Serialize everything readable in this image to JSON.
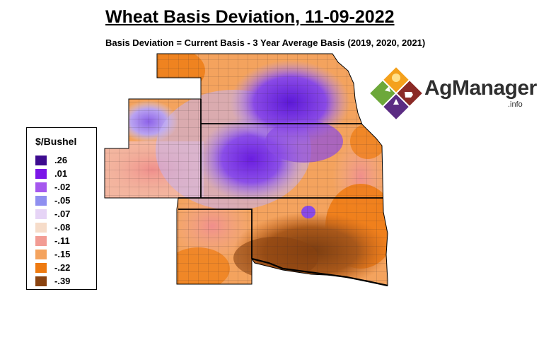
{
  "map": {
    "title": "Wheat Basis Deviation, 11-09-2022",
    "subtitle": "Basis Deviation = Current Basis - 3 Year Average Basis (2019, 2020, 2021)"
  },
  "legend": {
    "title": "$/Bushel",
    "items": [
      {
        "label": ".26",
        "color": "#3d0b8f"
      },
      {
        "label": ".01",
        "color": "#7b16e8"
      },
      {
        "label": "-.02",
        "color": "#a557ee"
      },
      {
        "label": "-.05",
        "color": "#8f8ff0"
      },
      {
        "label": "-.07",
        "color": "#e6d4f6"
      },
      {
        "label": "-.08",
        "color": "#f6dcc9"
      },
      {
        "label": "-.11",
        "color": "#f29c94"
      },
      {
        "label": "-.15",
        "color": "#f4a35e"
      },
      {
        "label": "-.22",
        "color": "#ee7a10"
      },
      {
        "label": "-.39",
        "color": "#8a4310"
      }
    ]
  },
  "logo": {
    "name": "AgManager",
    "suffix": ".info"
  }
}
